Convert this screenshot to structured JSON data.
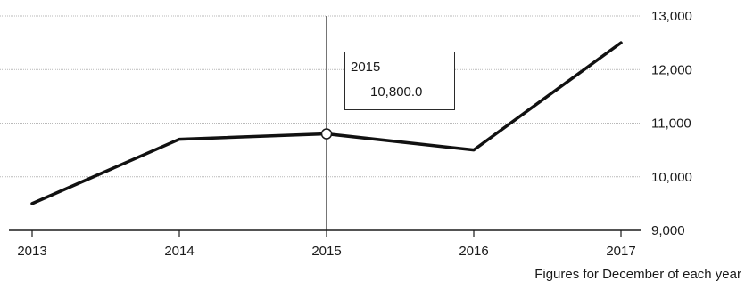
{
  "chart_data": {
    "type": "line",
    "x": [
      "2013",
      "2014",
      "2015",
      "2016",
      "2017"
    ],
    "series": [
      {
        "values": [
          9500,
          10700,
          10800,
          10500,
          12500
        ]
      }
    ],
    "ylim": [
      9000,
      13000
    ],
    "yticks": [
      "9,000",
      "10,000",
      "11,000",
      "12,000",
      "13,000"
    ],
    "y_axis_side": "right",
    "grid": true,
    "caption": "Figures for December of each year",
    "highlight": {
      "x": "2015",
      "year_label": "2015",
      "value_label": "10,800.0"
    },
    "colors": {
      "line": "#111111",
      "grid": "#b9b9b9"
    }
  }
}
